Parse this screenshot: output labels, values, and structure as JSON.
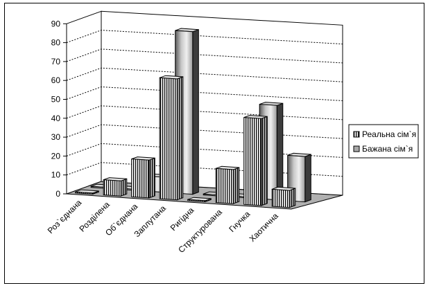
{
  "chart_data": {
    "type": "bar",
    "title": "",
    "xlabel": "",
    "ylabel": "",
    "ylim": [
      0,
      90
    ],
    "yticks": [
      0,
      10,
      20,
      30,
      40,
      50,
      60,
      70,
      80,
      90
    ],
    "grid": "horizontal dashed",
    "legend_position": "right",
    "categories": [
      "Роз`єднана",
      "Розділена",
      "Об`єднана",
      "Заплутана",
      "Ригідна",
      "Структурована",
      "Гнучка",
      "Хаотична"
    ],
    "series": [
      {
        "name": "Реальна сім`я",
        "values": [
          0,
          8,
          20,
          64,
          0,
          18,
          46,
          9
        ],
        "pattern": "vertical stripes"
      },
      {
        "name": "Бажана сім`я",
        "values": [
          0,
          0,
          8,
          86,
          0,
          0,
          50,
          24
        ],
        "pattern": "gray gradient"
      }
    ]
  }
}
